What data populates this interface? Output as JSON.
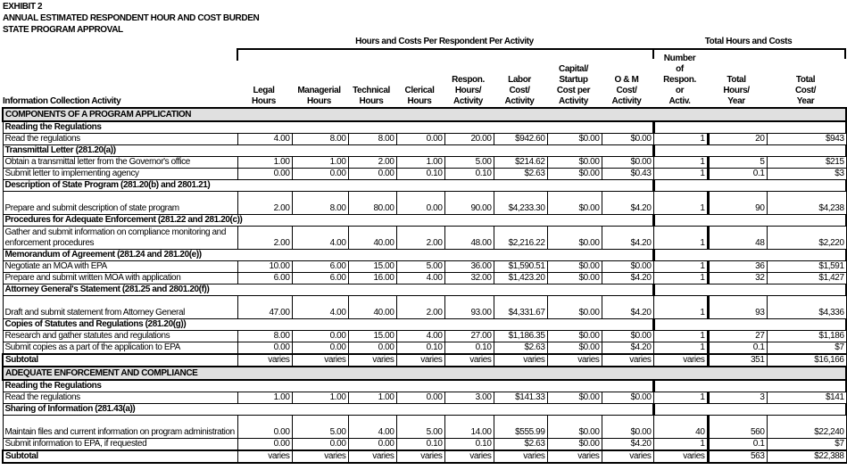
{
  "title": {
    "line1": "EXHIBIT 2",
    "line2": "ANNUAL ESTIMATED RESPONDENT HOUR AND COST BURDEN",
    "line3": "STATE PROGRAM APPROVAL"
  },
  "group_headers": {
    "per_activity": "Hours and Costs Per Respondent Per Activity",
    "totals": "Total Hours and Costs"
  },
  "columns": [
    "Information Collection Activity",
    "Legal\nHours",
    "Managerial\nHours",
    "Technical\nHours",
    "Clerical\nHours",
    "Respon.\nHours/\nActivity",
    "Labor\nCost/\nActivity",
    "Capital/\nStartup\nCost per\nActivity",
    "O & M\nCost/\nActivity",
    "Number\nof\nRespon.\nor\nActiv.",
    "Total\nHours/\nYear",
    "Total\nCost/\nYear"
  ],
  "rows": [
    {
      "type": "section",
      "label": "COMPONENTS OF A PROGRAM APPLICATION"
    },
    {
      "type": "group",
      "label": "Reading the Regulations"
    },
    {
      "type": "single",
      "label": "Read the regulations",
      "values": [
        "4.00",
        "8.00",
        "8.00",
        "0.00",
        "20.00",
        "$942.60",
        "$0.00",
        "$0.00",
        "1",
        "20",
        "$943"
      ]
    },
    {
      "type": "group",
      "label": "Transmittal Letter (281.20(a))"
    },
    {
      "type": "single",
      "label": "Obtain a transmittal letter from the Governor's office",
      "values": [
        "1.00",
        "1.00",
        "2.00",
        "1.00",
        "5.00",
        "$214.62",
        "$0.00",
        "$0.00",
        "1",
        "5",
        "$215"
      ]
    },
    {
      "type": "single",
      "label": "Submit letter to implementing agency",
      "values": [
        "0.00",
        "0.00",
        "0.00",
        "0.10",
        "0.10",
        "$2.63",
        "$0.00",
        "$0.43",
        "1",
        "0.1",
        "$3"
      ]
    },
    {
      "type": "group",
      "label": "Description of State Program (281.20(b) and 2801.21)"
    },
    {
      "type": "double",
      "label": "Prepare and submit description of state program",
      "values": [
        "2.00",
        "8.00",
        "80.00",
        "0.00",
        "90.00",
        "$4,233.30",
        "$0.00",
        "$4.20",
        "1",
        "90",
        "$4,238"
      ]
    },
    {
      "type": "group",
      "label": "Procedures for Adequate Enforcement (281.22 and 281.20(c))"
    },
    {
      "type": "double",
      "label": "Gather and submit information on compliance monitoring and enforcement procedures",
      "values": [
        "2.00",
        "4.00",
        "40.00",
        "2.00",
        "48.00",
        "$2,216.22",
        "$0.00",
        "$4.20",
        "1",
        "48",
        "$2,220"
      ]
    },
    {
      "type": "group",
      "label": "Memorandum of Agreement (281.24 and 281.20(e))"
    },
    {
      "type": "single",
      "label": "Negotiate an MOA with EPA",
      "values": [
        "10.00",
        "6.00",
        "15.00",
        "5.00",
        "36.00",
        "$1,590.51",
        "$0.00",
        "$0.00",
        "1",
        "36",
        "$1,591"
      ]
    },
    {
      "type": "single",
      "label": "Prepare and submit written MOA with application",
      "values": [
        "6.00",
        "6.00",
        "16.00",
        "4.00",
        "32.00",
        "$1,423.20",
        "$0.00",
        "$4.20",
        "1",
        "32",
        "$1,427"
      ]
    },
    {
      "type": "group",
      "label": "Attorney General's Statement (281.25 and 2801.20(f))"
    },
    {
      "type": "double",
      "label": "Draft and submit statement from Attorney General",
      "values": [
        "47.00",
        "4.00",
        "40.00",
        "2.00",
        "93.00",
        "$4,331.67",
        "$0.00",
        "$4.20",
        "1",
        "93",
        "$4,336"
      ]
    },
    {
      "type": "group",
      "label": "Copies of Statutes and Regulations (281.20(g))"
    },
    {
      "type": "single",
      "label": "Research and gather statutes and regulations",
      "values": [
        "8.00",
        "0.00",
        "15.00",
        "4.00",
        "27.00",
        "$1,186.35",
        "$0.00",
        "$0.00",
        "1",
        "27",
        "$1,186"
      ]
    },
    {
      "type": "single",
      "label": "Submit copies as a part of the application to EPA",
      "values": [
        "0.00",
        "0.00",
        "0.00",
        "0.10",
        "0.10",
        "$2.63",
        "$0.00",
        "$4.20",
        "1",
        "0.1",
        "$7"
      ]
    },
    {
      "type": "subtotal",
      "label": "Subtotal",
      "values": [
        "varies",
        "varies",
        "varies",
        "varies",
        "varies",
        "varies",
        "varies",
        "varies",
        "varies",
        "351",
        "$16,166"
      ]
    },
    {
      "type": "section",
      "label": "ADEQUATE ENFORCEMENT AND COMPLIANCE"
    },
    {
      "type": "group",
      "label": "Reading the Regulations"
    },
    {
      "type": "single",
      "label": "Read the regulations",
      "values": [
        "1.00",
        "1.00",
        "1.00",
        "0.00",
        "3.00",
        "$141.33",
        "$0.00",
        "$0.00",
        "1",
        "3",
        "$141"
      ]
    },
    {
      "type": "group",
      "label": "Sharing of Information (281.43(a))"
    },
    {
      "type": "double",
      "label": "Maintain files and current information on program administration",
      "values": [
        "0.00",
        "5.00",
        "4.00",
        "5.00",
        "14.00",
        "$555.99",
        "$0.00",
        "$0.00",
        "40",
        "560",
        "$22,240"
      ]
    },
    {
      "type": "single",
      "label": "Submit information to EPA, if requested",
      "values": [
        "0.00",
        "0.00",
        "0.00",
        "0.10",
        "0.10",
        "$2.63",
        "$0.00",
        "$4.20",
        "1",
        "0.1",
        "$7"
      ]
    },
    {
      "type": "subtotal",
      "label": "Subtotal",
      "values": [
        "varies",
        "varies",
        "varies",
        "varies",
        "varies",
        "varies",
        "varies",
        "varies",
        "varies",
        "563",
        "$22,388"
      ]
    }
  ]
}
